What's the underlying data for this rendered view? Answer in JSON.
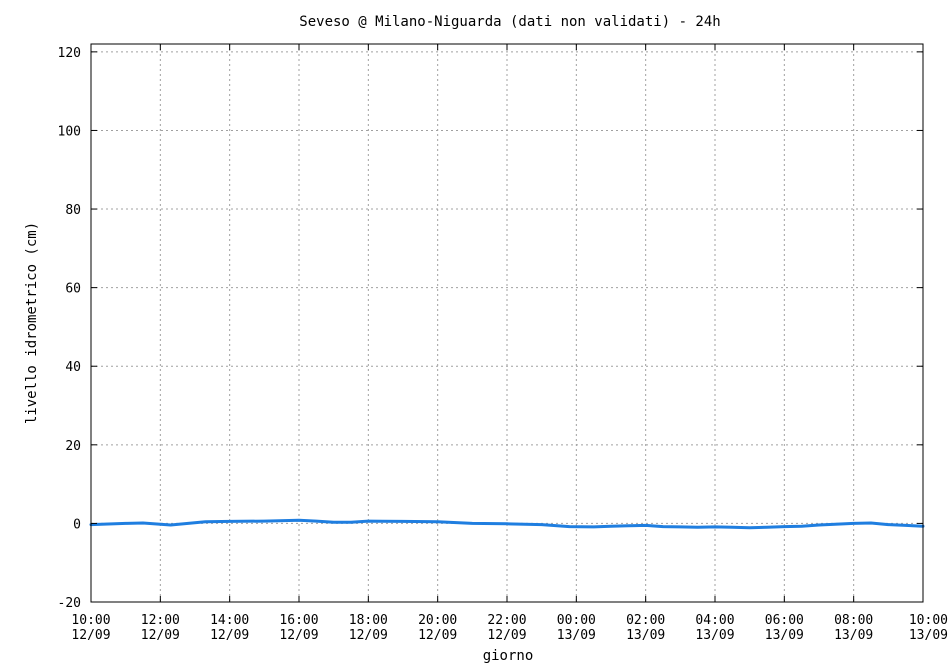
{
  "chart_data": {
    "type": "line",
    "title": "Seveso @ Milano-Niguarda (dati non validati) - 24h",
    "xlabel": "giorno",
    "ylabel": "livello idrometrico (cm)",
    "ylim": [
      -20,
      122
    ],
    "yticks": [
      "-20",
      "0",
      "20",
      "40",
      "60",
      "80",
      "100",
      "120"
    ],
    "ytick_values": [
      -20,
      0,
      20,
      40,
      60,
      80,
      100,
      120
    ],
    "xlim": [
      0,
      24
    ],
    "xticks": [
      {
        "hour": 0,
        "time": "10:00",
        "date": "12/09"
      },
      {
        "hour": 2,
        "time": "12:00",
        "date": "12/09"
      },
      {
        "hour": 4,
        "time": "14:00",
        "date": "12/09"
      },
      {
        "hour": 6,
        "time": "16:00",
        "date": "12/09"
      },
      {
        "hour": 8,
        "time": "18:00",
        "date": "12/09"
      },
      {
        "hour": 10,
        "time": "20:00",
        "date": "12/09"
      },
      {
        "hour": 12,
        "time": "22:00",
        "date": "12/09"
      },
      {
        "hour": 14,
        "time": "00:00",
        "date": "13/09"
      },
      {
        "hour": 16,
        "time": "02:00",
        "date": "13/09"
      },
      {
        "hour": 18,
        "time": "04:00",
        "date": "13/09"
      },
      {
        "hour": 20,
        "time": "06:00",
        "date": "13/09"
      },
      {
        "hour": 22,
        "time": "08:00",
        "date": "13/09"
      },
      {
        "hour": 24,
        "time": "10:00",
        "date": "13/09"
      }
    ],
    "grid": true,
    "series": [
      {
        "color": "#1f7ee0",
        "x": [
          0,
          1,
          1.5,
          2,
          2.3,
          2.8,
          3.3,
          4,
          5,
          6,
          6.5,
          7,
          7.5,
          8,
          9,
          10,
          11,
          12,
          13,
          13.8,
          14.5,
          15,
          15.5,
          16,
          16.5,
          17,
          17.5,
          18,
          18.5,
          19,
          19.5,
          20,
          20.5,
          21,
          22,
          22.5,
          23,
          23.5,
          24
        ],
        "y": [
          -0.3,
          0,
          0.1,
          -0.2,
          -0.4,
          0,
          0.4,
          0.5,
          0.6,
          0.8,
          0.6,
          0.3,
          0.3,
          0.6,
          0.5,
          0.4,
          0,
          -0.1,
          -0.3,
          -0.8,
          -0.9,
          -0.7,
          -0.6,
          -0.5,
          -0.8,
          -0.9,
          -1.0,
          -0.9,
          -1.0,
          -1.1,
          -1.0,
          -0.8,
          -0.7,
          -0.4,
          0,
          0.1,
          -0.3,
          -0.5,
          -0.7
        ]
      }
    ]
  }
}
